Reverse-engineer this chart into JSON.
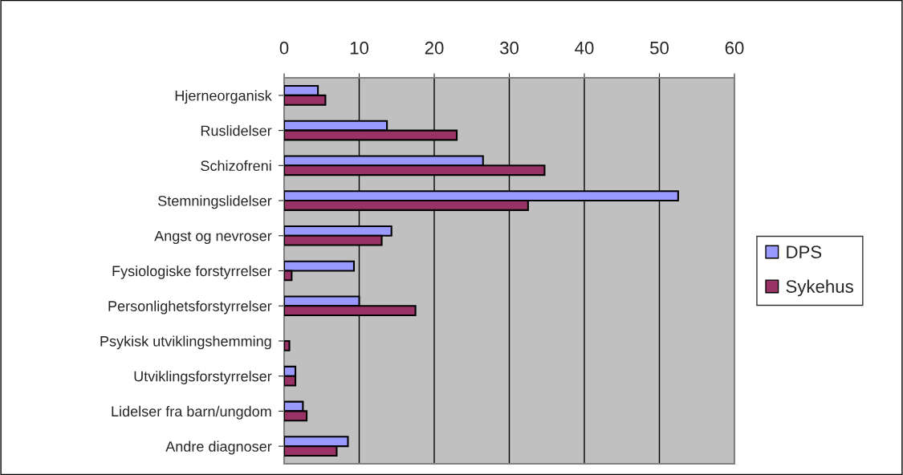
{
  "chart_data": {
    "type": "bar",
    "orientation": "horizontal",
    "categories": [
      "Hjerneorganisk",
      "Ruslidelser",
      "Schizofreni",
      "Stemningslidelser",
      "Angst og nevroser",
      "Fysiologiske forstyrrelser",
      "Personlighetsforstyrrelser",
      "Psykisk utviklingshemming",
      "Utviklingsforstyrrelser",
      "Lidelser fra barn/ungdom",
      "Andre diagnoser"
    ],
    "series": [
      {
        "name": "DPS",
        "color": "#9999ff",
        "values": [
          4.5,
          13.7,
          26.5,
          52.5,
          14.3,
          9.3,
          10.0,
          null,
          1.5,
          2.5,
          8.5
        ]
      },
      {
        "name": "Sykehus",
        "color": "#993366",
        "values": [
          5.5,
          23.0,
          34.7,
          32.5,
          13.0,
          1.0,
          17.5,
          0.7,
          1.5,
          3.0,
          7.0
        ]
      }
    ],
    "xlim": [
      0,
      60
    ],
    "xticks": [
      0,
      10,
      20,
      30,
      40,
      50,
      60
    ],
    "grid": "x",
    "legend": "right"
  }
}
